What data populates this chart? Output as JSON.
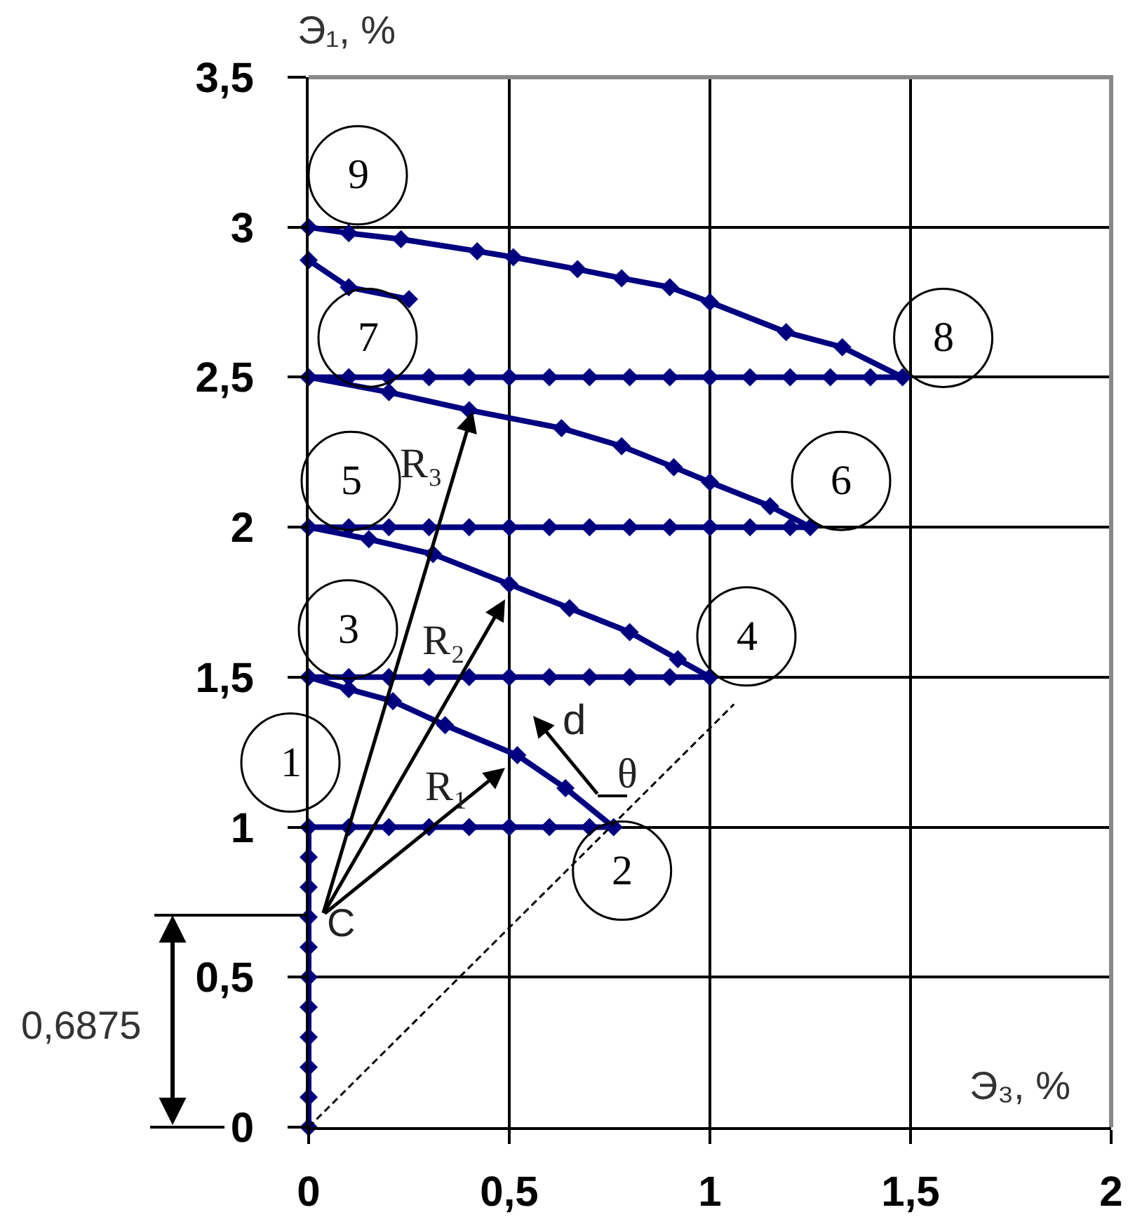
{
  "chart_data": {
    "type": "line",
    "xlabel": "Э₃, %",
    "ylabel": "Э₁, %",
    "xlim": [
      0,
      2
    ],
    "ylim": [
      0,
      3.5
    ],
    "xticks": [
      0,
      {
        "value": 0.5,
        "label": "0,5"
      },
      1,
      {
        "value": 1.5,
        "label": "1,5"
      },
      2
    ],
    "yticks": [
      0,
      {
        "value": 0.5,
        "label": "0,5"
      },
      1,
      {
        "value": 1.5,
        "label": "1,5"
      },
      2,
      {
        "value": 2.5,
        "label": "2,5"
      },
      3,
      {
        "value": 3.5,
        "label": "3,5"
      }
    ],
    "grid": true,
    "marker": "diamond",
    "series": [
      {
        "color": "#000080",
        "x": [
          0,
          0,
          0,
          0,
          0,
          0,
          0,
          0,
          0,
          0,
          0,
          0.1,
          0.2,
          0.3,
          0.4,
          0.5,
          0.6,
          0.7,
          0.76,
          0.64,
          0.52,
          0.34,
          0.21,
          0.1,
          0,
          0.1,
          0.2,
          0.3,
          0.4,
          0.5,
          0.6,
          0.7,
          0.8,
          0.9,
          1.0,
          0.92,
          0.8,
          0.65,
          0.5,
          0.31,
          0.15,
          0,
          0.1,
          0.2,
          0.3,
          0.4,
          0.5,
          0.6,
          0.7,
          0.8,
          0.9,
          1.0,
          1.1,
          1.2,
          1.25,
          1.15,
          1.0,
          0.91,
          0.78,
          0.63,
          0.4,
          0.2,
          0,
          0.1,
          0.2,
          0.3,
          0.4,
          0.5,
          0.6,
          0.7,
          0.8,
          0.9,
          1.0,
          1.1,
          1.2,
          1.3,
          1.4,
          1.48,
          1.33,
          1.19,
          1.0,
          0.9,
          0.78,
          0.67,
          0.51,
          0.42,
          0.23,
          0.1,
          0
        ],
        "values": [
          0,
          0.1,
          0.2,
          0.3,
          0.4,
          0.5,
          0.6,
          0.7,
          0.8,
          0.9,
          1.0,
          1,
          1,
          1,
          1,
          1,
          1,
          1,
          1,
          1.13,
          1.24,
          1.34,
          1.42,
          1.46,
          1.5,
          1.5,
          1.5,
          1.5,
          1.5,
          1.5,
          1.5,
          1.5,
          1.5,
          1.5,
          1.5,
          1.56,
          1.65,
          1.73,
          1.81,
          1.91,
          1.96,
          2.0,
          2,
          2,
          2,
          2,
          2,
          2,
          2,
          2,
          2,
          2,
          2,
          2,
          2,
          2.07,
          2.15,
          2.2,
          2.27,
          2.33,
          2.39,
          2.45,
          2.5,
          2.5,
          2.5,
          2.5,
          2.5,
          2.5,
          2.5,
          2.5,
          2.5,
          2.5,
          2.5,
          2.5,
          2.5,
          2.5,
          2.5,
          2.5,
          2.6,
          2.65,
          2.75,
          2.8,
          2.83,
          2.86,
          2.9,
          2.92,
          2.96,
          2.98,
          3.0
        ]
      },
      {
        "color": "#000080",
        "x": [
          0,
          0.1,
          0.25
        ],
        "values": [
          2.89,
          2.8,
          2.76
        ]
      },
      {
        "color": "#000000",
        "marker": "none",
        "line_style": "dashed",
        "x": [
          0,
          1.06
        ],
        "values": [
          0,
          1.41
        ]
      }
    ],
    "annotations": [
      {
        "text": "1",
        "x": 0,
        "y": 1
      },
      {
        "text": "2",
        "x": 0.76,
        "y": 1
      },
      {
        "text": "3",
        "x": 0,
        "y": 1.5
      },
      {
        "text": "4",
        "x": 1,
        "y": 1.5
      },
      {
        "text": "5",
        "x": 0,
        "y": 2
      },
      {
        "text": "6",
        "x": 1.25,
        "y": 2
      },
      {
        "text": "7",
        "x": 0,
        "y": 2.5
      },
      {
        "text": "8",
        "x": 1.48,
        "y": 2.5
      },
      {
        "text": "9",
        "x": 0,
        "y": 3
      },
      "C",
      "R₁",
      "R₂",
      "R₃",
      "d",
      "θ",
      "0,6875"
    ]
  }
}
